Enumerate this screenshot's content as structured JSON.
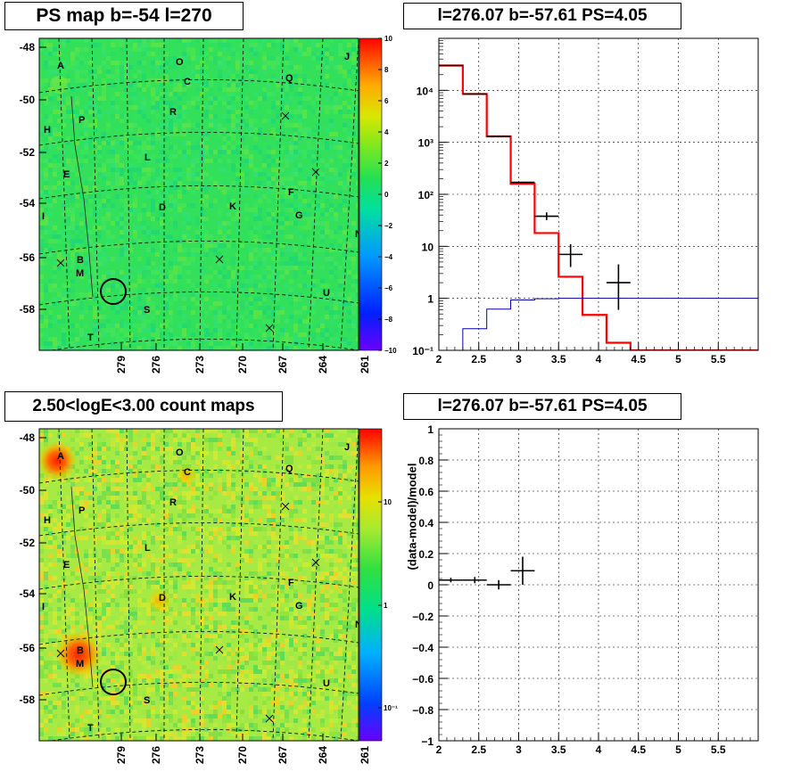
{
  "colors": {
    "psmap_background": "#33e05a",
    "count_background": "#a8ea44",
    "model": "#ff0000",
    "background_model": "#0000aa",
    "data": "#000000",
    "grid": "#000000"
  },
  "panels": {
    "ps_map": {
      "title": "PS map b=-54 l=270",
      "type": "heatmap",
      "y_ticks": [
        "-48",
        "-50",
        "-52",
        "-54",
        "-56",
        "-58"
      ],
      "x_ticks": [
        "279",
        "276",
        "273",
        "270",
        "267",
        "264",
        "261"
      ],
      "colorbar_ticks": [
        "10",
        "8",
        "6",
        "4",
        "2",
        "0",
        "−2",
        "−4",
        "−6",
        "−8",
        "−10"
      ],
      "colorbar_scale": "linear",
      "colorbar_range": [
        -10,
        10
      ]
    },
    "count_map": {
      "title": "2.50<logE<3.00 count maps",
      "type": "heatmap",
      "y_ticks": [
        "-48",
        "-50",
        "-52",
        "-54",
        "-56",
        "-58"
      ],
      "x_ticks": [
        "279",
        "276",
        "273",
        "270",
        "267",
        "264",
        "261"
      ],
      "colorbar_ticks": [
        "10",
        "1",
        "10⁻¹"
      ],
      "colorbar_scale": "log",
      "hot_spots": [
        "A",
        "B"
      ],
      "warm_spots": [
        "C",
        "D"
      ]
    },
    "spectrum": {
      "title": "l=276.07 b=-57.61 PS=4.05"
    },
    "residual": {
      "title": "l=276.07 b=-57.61 PS=4.05"
    }
  },
  "sources": [
    "A",
    "O",
    "J",
    "C",
    "Q",
    "P",
    "R",
    "H",
    "L",
    "E",
    "F",
    "D",
    "K",
    "G",
    "I",
    "N",
    "B",
    "M",
    "U",
    "S",
    "T"
  ],
  "chart_data": [
    {
      "type": "heatmap",
      "title": "PS map b=-54 l=270",
      "x_ticks": [
        279,
        276,
        273,
        270,
        267,
        264,
        261
      ],
      "y_ticks": [
        -48,
        -50,
        -52,
        -54,
        -56,
        -58
      ],
      "colorbar_range": [
        -10,
        10
      ],
      "marked_position": {
        "l": 276.07,
        "b": -57.61
      }
    },
    {
      "type": "heatmap",
      "title": "2.50<logE<3.00 count maps",
      "x_ticks": [
        279,
        276,
        273,
        270,
        267,
        264,
        261
      ],
      "y_ticks": [
        -48,
        -50,
        -52,
        -54,
        -56,
        -58
      ],
      "colorbar_scale": "log",
      "colorbar_ticks": [
        10,
        1,
        0.1
      ]
    },
    {
      "type": "line",
      "title": "l=276.07 b=-57.61 PS=4.05",
      "xlabel": "",
      "ylabel": "",
      "xlim": [
        2,
        6
      ],
      "ylim": [
        0.1,
        100000
      ],
      "y_scale": "log",
      "x_ticks": [
        2,
        2.5,
        3,
        3.5,
        4,
        4.5,
        5,
        5.5
      ],
      "y_ticks": [
        "10⁻¹",
        "1",
        "10",
        "10²",
        "10³",
        "10⁴"
      ],
      "grid": true,
      "series": [
        {
          "style": "step",
          "color": "#ff0000",
          "edges": [
            2,
            2.3,
            2.6,
            2.9,
            3.2,
            3.5,
            3.8,
            4.1,
            4.4,
            6
          ],
          "values": [
            30000,
            8500,
            1300,
            160,
            18,
            2.6,
            0.48,
            0.14,
            0.09
          ]
        },
        {
          "style": "step",
          "color": "#0000aa",
          "edges": [
            2.3,
            2.6,
            2.9,
            3.2,
            3.5,
            6
          ],
          "values": [
            0.26,
            0.62,
            0.93,
            0.98,
            1.0
          ]
        },
        {
          "style": "errorbar",
          "color": "#000000",
          "points": [
            {
              "x": 2.15,
              "y": 30000,
              "xerr": 0.15
            },
            {
              "x": 2.45,
              "y": 8500,
              "xerr": 0.15
            },
            {
              "x": 2.75,
              "y": 1300,
              "xerr": 0.15
            },
            {
              "x": 3.05,
              "y": 170,
              "xerr": 0.15
            },
            {
              "x": 3.35,
              "y": 38,
              "xerr": 0.15,
              "ylo": 32,
              "yhi": 45
            },
            {
              "x": 3.65,
              "y": 7,
              "xerr": 0.15,
              "ylo": 4,
              "yhi": 11
            },
            {
              "x": 4.25,
              "y": 2,
              "xerr": 0.15,
              "ylo": 0.6,
              "yhi": 4.5
            }
          ]
        }
      ]
    },
    {
      "type": "scatter",
      "title": "l=276.07 b=-57.61 PS=4.05",
      "ylabel": "(data-model)/model",
      "xlim": [
        2,
        6
      ],
      "ylim": [
        -1,
        1
      ],
      "x_ticks": [
        2,
        2.5,
        3,
        3.5,
        4,
        4.5,
        5,
        5.5
      ],
      "y_ticks": [
        1,
        0.8,
        0.6,
        0.4,
        0.2,
        0,
        -0.2,
        -0.4,
        -0.6,
        -0.8,
        -1
      ],
      "grid": true,
      "points": [
        {
          "x": 2.15,
          "y": 0.03,
          "xerr": 0.15,
          "yerr": 0.005
        },
        {
          "x": 2.45,
          "y": 0.03,
          "xerr": 0.15,
          "yerr": 0.01
        },
        {
          "x": 2.75,
          "y": 0.0,
          "xerr": 0.15,
          "yerr": 0.02
        },
        {
          "x": 3.05,
          "y": 0.09,
          "xerr": 0.15,
          "yerr": 0.08
        }
      ]
    }
  ]
}
